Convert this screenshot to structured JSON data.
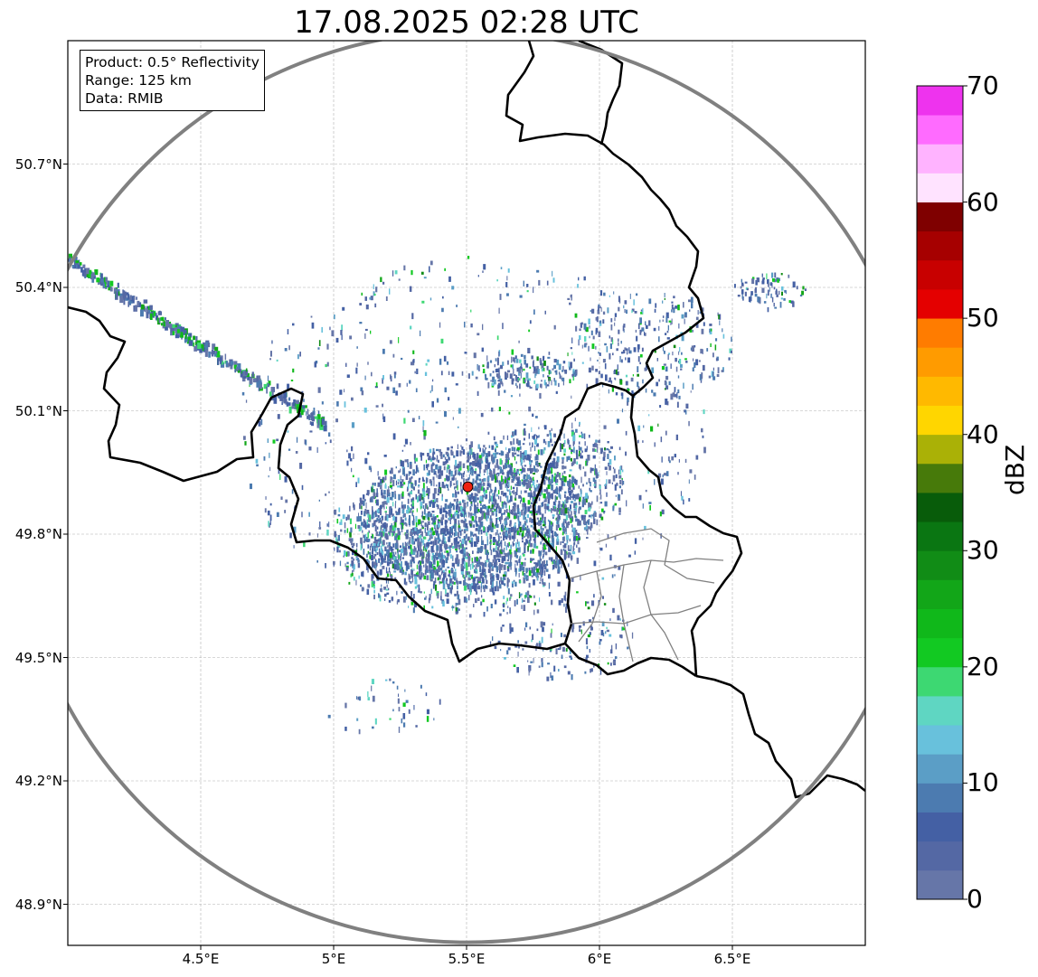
{
  "title": "17.08.2025 02:28 UTC",
  "info": {
    "product": "Product: 0.5° Reflectivity",
    "range": "Range: 125 km",
    "source": "Data: RMIB"
  },
  "map": {
    "lon_range": [
      4.0,
      7.0
    ],
    "lat_range": [
      48.8,
      51.0
    ],
    "grid": true,
    "radar_site": {
      "lon": 5.505,
      "lat": 49.915,
      "color": "#ee2211"
    },
    "range_ring_color": "#808080",
    "lat_ticks": [
      {
        "value": 50.7,
        "label": "50.7°N"
      },
      {
        "value": 50.4,
        "label": "50.4°N"
      },
      {
        "value": 50.1,
        "label": "50.1°N"
      },
      {
        "value": 49.8,
        "label": "49.8°N"
      },
      {
        "value": 49.5,
        "label": "49.5°N"
      },
      {
        "value": 49.2,
        "label": "49.2°N"
      },
      {
        "value": 48.9,
        "label": "48.9°N"
      }
    ],
    "lon_ticks": [
      {
        "value": 4.5,
        "label": "4.5°E"
      },
      {
        "value": 5.0,
        "label": "5°E"
      },
      {
        "value": 5.5,
        "label": "5.5°E"
      },
      {
        "value": 6.0,
        "label": "6°E"
      },
      {
        "value": 6.5,
        "label": "6.5°E"
      }
    ]
  },
  "colorbar": {
    "label": "dBZ",
    "min": 0,
    "max": 70,
    "ticks": [
      {
        "value": 0,
        "label": "0"
      },
      {
        "value": 10,
        "label": "10"
      },
      {
        "value": 20,
        "label": "20"
      },
      {
        "value": 30,
        "label": "30"
      },
      {
        "value": 40,
        "label": "40"
      },
      {
        "value": 50,
        "label": "50"
      },
      {
        "value": 60,
        "label": "60"
      },
      {
        "value": 70,
        "label": "70"
      }
    ],
    "colors": [
      "#6676a8",
      "#5468a4",
      "#4460a4",
      "#4c7bb0",
      "#5b9ec6",
      "#68c1dc",
      "#5fd6c2",
      "#3dd872",
      "#12c922",
      "#10b81a",
      "#12a618",
      "#118c16",
      "#0a7612",
      "#085c0a",
      "#477a0a",
      "#aab106",
      "#ffd600",
      "#ffb900",
      "#ff9b00",
      "#ff7c00",
      "#e40000",
      "#c80000",
      "#a60000",
      "#7f0000",
      "#ffe3ff",
      "#ffb3ff",
      "#ff6bff",
      "#ee33ee"
    ]
  }
}
